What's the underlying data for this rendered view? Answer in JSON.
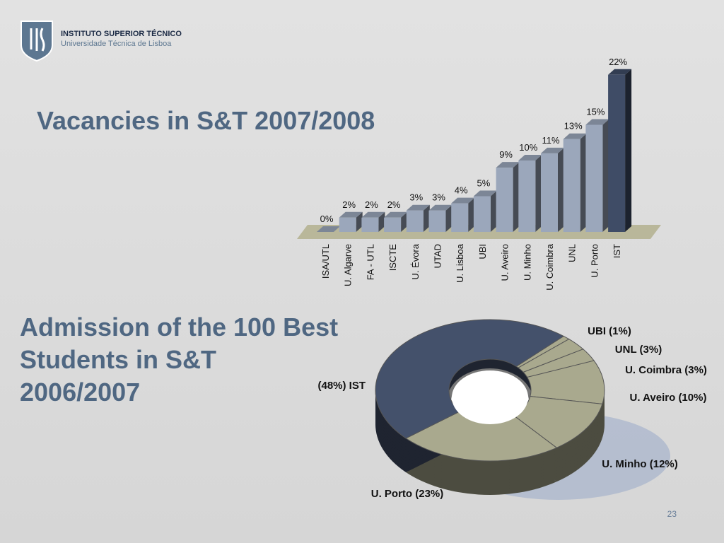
{
  "header": {
    "institute": "INSTITUTO SUPERIOR TÉCNICO",
    "university": "Universidade Técnica de Lisboa"
  },
  "slide_number": "23",
  "chart_data": [
    {
      "type": "bar",
      "title": "Vacancies in S&T 2007/2008",
      "categories": [
        "ISA/UTL",
        "U. Algarve",
        "FA - UTL",
        "ISCTE",
        "U. Évora",
        "UTAD",
        "U. Lisboa",
        "UBI",
        "U. Aveiro",
        "U. Minho",
        "U. Coimbra",
        "UNL",
        "U. Porto",
        "IST"
      ],
      "values": [
        0,
        2,
        2,
        2,
        3,
        3,
        4,
        5,
        9,
        10,
        11,
        13,
        15,
        22
      ],
      "value_labels": [
        "0%",
        "2%",
        "2%",
        "2%",
        "3%",
        "3%",
        "4%",
        "5%",
        "9%",
        "10%",
        "11%",
        "13%",
        "15%",
        "22%"
      ],
      "colors": [
        "#9ba7bb",
        "#9ba7bb",
        "#9ba7bb",
        "#9ba7bb",
        "#9ba7bb",
        "#9ba7bb",
        "#9ba7bb",
        "#9ba7bb",
        "#9ba7bb",
        "#9ba7bb",
        "#9ba7bb",
        "#9ba7bb",
        "#9ba7bb",
        "#3f4c66"
      ]
    },
    {
      "type": "pie",
      "title": "Admission of the 100 Best\nStudents in S&T\n2006/2007",
      "values": [
        1,
        3,
        3,
        10,
        12,
        23,
        48
      ],
      "value_labels": [
        "UBI (1%)",
        "UNL (3%)",
        "U. Coimbra (3%)",
        "U. Aveiro (10%)",
        "U. Minho (12%)",
        "U. Porto (23%)",
        "(48%) IST"
      ],
      "colors": [
        "#a9a98e",
        "#a9a98e",
        "#a9a98e",
        "#a9a98e",
        "#a9a98e",
        "#a9a98e",
        "#44516b"
      ]
    }
  ]
}
